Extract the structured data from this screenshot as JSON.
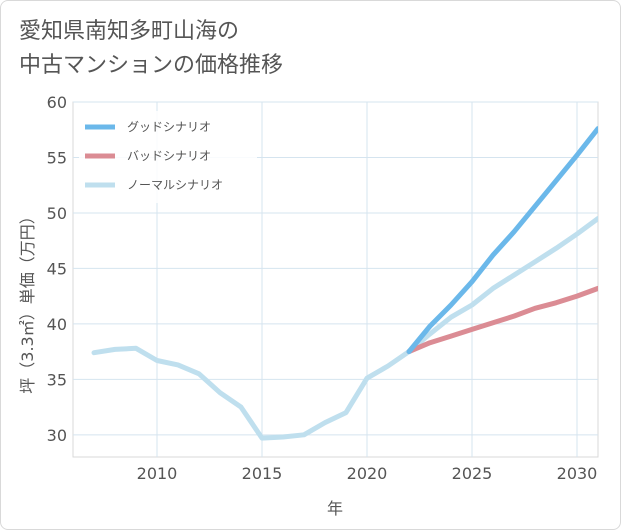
{
  "title_lines": [
    "愛知県南知多町山海の",
    "中古マンションの価格推移"
  ],
  "chart_data": {
    "type": "line",
    "title": "愛知県南知多町山海の中古マンションの価格推移",
    "xlabel": "年",
    "ylabel": "坪（3.3㎡）単価（万円）",
    "xlim": [
      2006,
      2031
    ],
    "ylim": [
      28,
      60
    ],
    "xticks": [
      2010,
      2015,
      2020,
      2025,
      2030
    ],
    "yticks": [
      30,
      35,
      40,
      45,
      50,
      55,
      60
    ],
    "grid": true,
    "legend_position": "top-left",
    "series": [
      {
        "name": "グッドシナリオ",
        "color": "#6bb8ea",
        "x": [
          2022,
          2023,
          2024,
          2025,
          2026,
          2027,
          2028,
          2029,
          2030,
          2031
        ],
        "y": [
          37.5,
          39.8,
          41.7,
          43.8,
          46.2,
          48.3,
          50.6,
          52.9,
          55.2,
          57.6
        ]
      },
      {
        "name": "バッドシナリオ",
        "color": "#db8c94",
        "x": [
          2022,
          2023,
          2024,
          2025,
          2026,
          2027,
          2028,
          2029,
          2030,
          2031
        ],
        "y": [
          37.5,
          38.3,
          38.9,
          39.5,
          40.1,
          40.7,
          41.4,
          41.9,
          42.5,
          43.2
        ]
      },
      {
        "name": "ノーマルシナリオ",
        "color": "#bfdfee",
        "x": [
          2007,
          2008,
          2009,
          2010,
          2011,
          2012,
          2013,
          2014,
          2015,
          2016,
          2017,
          2018,
          2019,
          2020,
          2021,
          2022,
          2023,
          2024,
          2025,
          2026,
          2027,
          2028,
          2029,
          2030,
          2031
        ],
        "y": [
          37.4,
          37.7,
          37.8,
          36.7,
          36.3,
          35.5,
          33.8,
          32.5,
          29.7,
          29.8,
          30.0,
          31.1,
          32.0,
          35.1,
          36.2,
          37.5,
          39.1,
          40.6,
          41.7,
          43.2,
          44.4,
          45.6,
          46.8,
          48.1,
          49.5
        ]
      }
    ]
  }
}
